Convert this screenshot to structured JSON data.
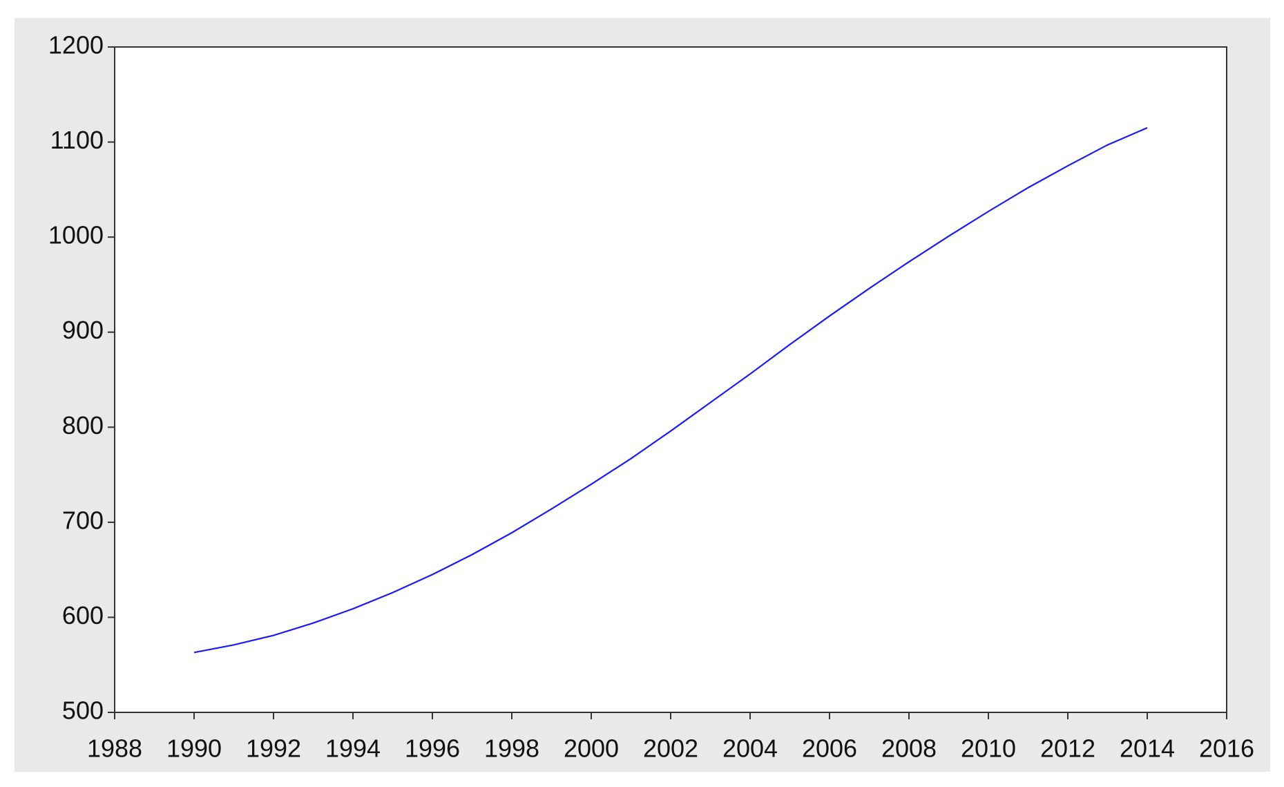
{
  "chart_data": {
    "type": "line",
    "x": [
      1990,
      1991,
      1992,
      1993,
      1994,
      1995,
      1996,
      1997,
      1998,
      1999,
      2000,
      2001,
      2002,
      2003,
      2004,
      2005,
      2006,
      2007,
      2008,
      2009,
      2010,
      2011,
      2012,
      2013,
      2014
    ],
    "series": [
      {
        "color": "#1a1aff",
        "values": [
          563,
          571,
          581,
          594,
          609,
          626,
          645,
          666,
          689,
          714,
          740,
          767,
          796,
          826,
          856,
          887,
          917,
          946,
          974,
          1001,
          1027,
          1052,
          1075,
          1097,
          1115
        ]
      }
    ],
    "xlim": [
      1988,
      2016
    ],
    "xticks": [
      1988,
      1990,
      1992,
      1994,
      1996,
      1998,
      2000,
      2002,
      2004,
      2006,
      2008,
      2010,
      2012,
      2014,
      2016
    ],
    "ylim": [
      500,
      1200
    ],
    "yticks": [
      500,
      600,
      700,
      800,
      900,
      1000,
      1100,
      1200
    ],
    "grid": false
  }
}
